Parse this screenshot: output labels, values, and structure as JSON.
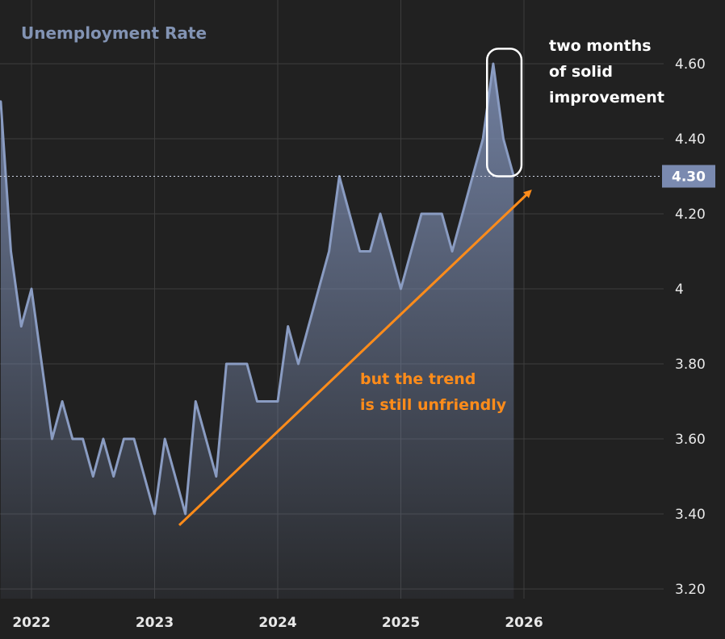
{
  "chart_data": {
    "type": "area",
    "title": "Unemployment Rate",
    "xlabel": "",
    "ylabel": "",
    "ylim": [
      3.15,
      4.75
    ],
    "xlim": [
      2021.75,
      2026.6
    ],
    "grid": true,
    "y_ticks": [
      {
        "value": 3.2,
        "label": "3.20"
      },
      {
        "value": 3.4,
        "label": "3.40"
      },
      {
        "value": 3.6,
        "label": "3.60"
      },
      {
        "value": 3.8,
        "label": "3.80"
      },
      {
        "value": 4.0,
        "label": "4"
      },
      {
        "value": 4.2,
        "label": "4.20"
      },
      {
        "value": 4.4,
        "label": "4.40"
      },
      {
        "value": 4.6,
        "label": "4.60"
      }
    ],
    "x_ticks": [
      {
        "value": 2022,
        "label": "2022"
      },
      {
        "value": 2023,
        "label": "2023"
      },
      {
        "value": 2024,
        "label": "2024"
      },
      {
        "value": 2025,
        "label": "2025"
      },
      {
        "value": 2026,
        "label": "2026"
      }
    ],
    "series": [
      {
        "color": "#8a9cc2",
        "points": [
          [
            2021.75,
            4.5
          ],
          [
            2021.833,
            4.1
          ],
          [
            2021.917,
            3.9
          ],
          [
            2022.0,
            4.0
          ],
          [
            2022.083,
            3.8
          ],
          [
            2022.167,
            3.6
          ],
          [
            2022.25,
            3.7
          ],
          [
            2022.333,
            3.6
          ],
          [
            2022.417,
            3.6
          ],
          [
            2022.5,
            3.5
          ],
          [
            2022.583,
            3.6
          ],
          [
            2022.667,
            3.5
          ],
          [
            2022.75,
            3.6
          ],
          [
            2022.833,
            3.6
          ],
          [
            2022.917,
            3.5
          ],
          [
            2023.0,
            3.4
          ],
          [
            2023.083,
            3.6
          ],
          [
            2023.167,
            3.5
          ],
          [
            2023.25,
            3.4
          ],
          [
            2023.333,
            3.7
          ],
          [
            2023.417,
            3.6
          ],
          [
            2023.5,
            3.5
          ],
          [
            2023.583,
            3.8
          ],
          [
            2023.667,
            3.8
          ],
          [
            2023.75,
            3.8
          ],
          [
            2023.833,
            3.7
          ],
          [
            2023.917,
            3.7
          ],
          [
            2024.0,
            3.7
          ],
          [
            2024.083,
            3.9
          ],
          [
            2024.167,
            3.8
          ],
          [
            2024.25,
            3.9
          ],
          [
            2024.333,
            4.0
          ],
          [
            2024.417,
            4.1
          ],
          [
            2024.5,
            4.3
          ],
          [
            2024.583,
            4.2
          ],
          [
            2024.667,
            4.1
          ],
          [
            2024.75,
            4.1
          ],
          [
            2024.833,
            4.2
          ],
          [
            2024.917,
            4.1
          ],
          [
            2025.0,
            4.0
          ],
          [
            2025.083,
            4.1
          ],
          [
            2025.167,
            4.2
          ],
          [
            2025.25,
            4.2
          ],
          [
            2025.333,
            4.2
          ],
          [
            2025.417,
            4.1
          ],
          [
            2025.5,
            4.2
          ],
          [
            2025.583,
            4.3
          ],
          [
            2025.667,
            4.4
          ],
          [
            2025.75,
            4.6
          ],
          [
            2025.833,
            4.4
          ],
          [
            2025.917,
            4.3
          ]
        ]
      }
    ],
    "last_value": {
      "value": 4.3,
      "label": "4.30"
    },
    "annotations": {
      "box_text": [
        "two months",
        "of solid",
        "improvement"
      ],
      "trend_text": [
        "but the trend",
        "is still unfriendly"
      ],
      "trend_line": {
        "from": [
          2023.2,
          3.37
        ],
        "to": [
          2026.05,
          4.26
        ]
      },
      "highlight": {
        "x_from": 2025.7,
        "x_to": 2025.98,
        "y_from": 4.3,
        "y_to": 4.64
      }
    },
    "colors": {
      "background": "#212121",
      "grid": "#3d3d3d",
      "line": "#8a9cc2",
      "trend": "#ff8c1a",
      "label_box": "#7a8ab0"
    }
  }
}
